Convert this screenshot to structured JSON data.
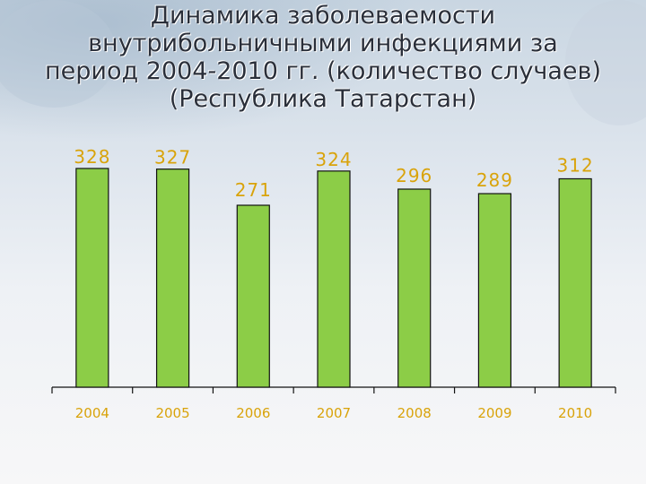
{
  "title_lines": [
    "Динамика заболеваемости",
    "внутрибольничными инфекциями за",
    "период 2004-2010 гг. (количество случаев)",
    "(Республика Татарстан)"
  ],
  "colors": {
    "bar_fill": "#8ccd47",
    "bar_stroke": "#111111",
    "label": "#d9a30a",
    "axis": "#111111"
  },
  "chart_data": {
    "type": "bar",
    "title": "Динамика заболеваемости внутрибольничными инфекциями за период 2004-2010 гг. (количество случаев) (Республика Татарстан)",
    "categories": [
      "2004",
      "2005",
      "2006",
      "2007",
      "2008",
      "2009",
      "2010"
    ],
    "values": [
      328,
      327,
      271,
      324,
      296,
      289,
      312
    ],
    "xlabel": "",
    "ylabel": "",
    "ylim": [
      0,
      340
    ],
    "grid": false,
    "legend": "none",
    "data_labels": true
  }
}
